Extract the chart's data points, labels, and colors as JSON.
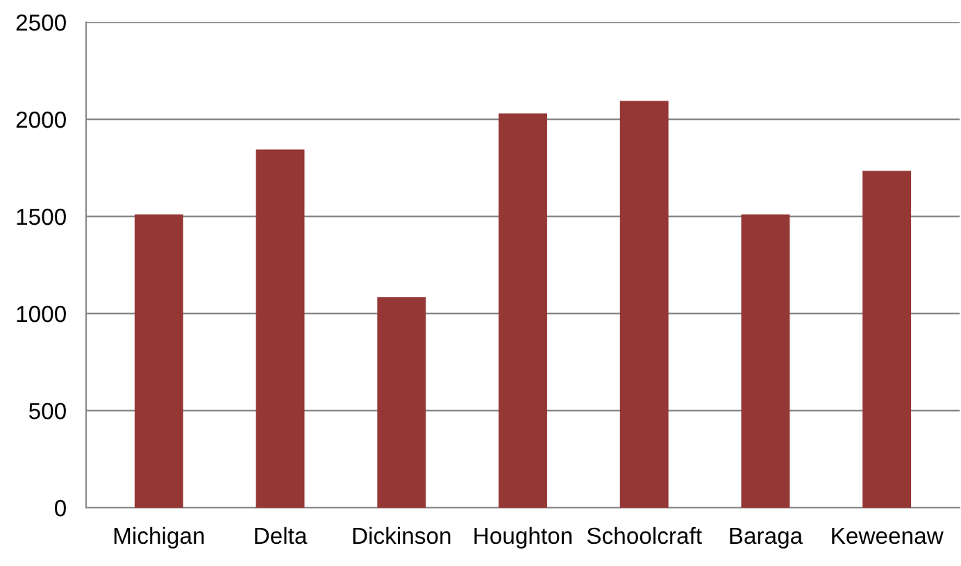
{
  "chart_data": {
    "type": "bar",
    "categories": [
      "Michigan",
      "Delta",
      "Dickinson",
      "Houghton",
      "Schoolcraft",
      "Baraga",
      "Keweenaw"
    ],
    "values": [
      1510,
      1845,
      1085,
      2030,
      2095,
      1510,
      1735
    ],
    "color": "#953735",
    "ylim": [
      0,
      2500
    ],
    "yticks": [
      0,
      500,
      1000,
      1500,
      2000,
      2500
    ],
    "grid": "y"
  }
}
